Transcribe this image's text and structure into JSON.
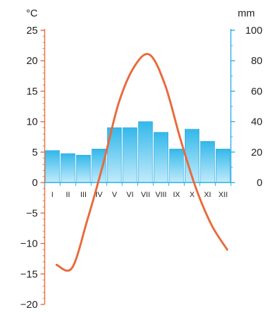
{
  "chart_data": {
    "type": "bar",
    "title": "",
    "categories": [
      "I",
      "II",
      "III",
      "IV",
      "V",
      "VI",
      "VII",
      "VIII",
      "IX",
      "X",
      "XI",
      "XII"
    ],
    "series": [
      {
        "type": "bar",
        "axis": "right",
        "values": [
          21,
          19,
          18,
          22,
          36,
          36,
          40,
          33,
          22,
          35,
          27,
          22
        ]
      },
      {
        "type": "line",
        "axis": "left",
        "values": [
          -13.5,
          -14,
          -6,
          3,
          13,
          19,
          21,
          16,
          7,
          -1,
          -7,
          -11
        ]
      }
    ],
    "left_axis": {
      "unit": "°C",
      "ylim": [
        -20,
        25
      ],
      "ticks": [
        25,
        20,
        15,
        10,
        5,
        0,
        -5,
        -10,
        -15,
        -20
      ]
    },
    "right_axis": {
      "unit": "mm",
      "ylim": [
        0,
        100
      ],
      "ticks": [
        100,
        80,
        60,
        40,
        20,
        0
      ]
    },
    "colors": {
      "bar_top": "#33b8ea",
      "bar_bottom": "#c2ebfb",
      "bar_edge": "#1fa4dc",
      "line": "#e96a3a",
      "left_axis": "#e96a3a",
      "right_axis": "#29aee6"
    }
  }
}
